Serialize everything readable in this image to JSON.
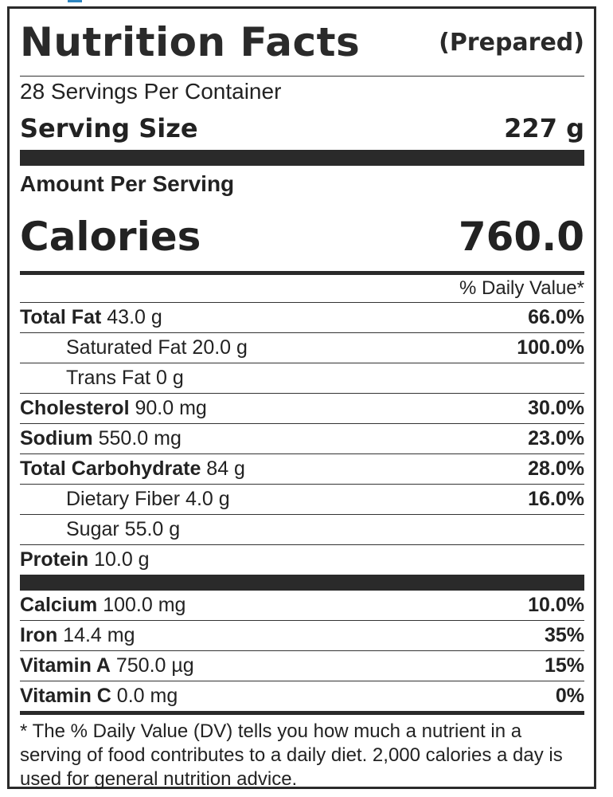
{
  "label": {
    "title": "Nutrition Facts",
    "prepared": "(Prepared)",
    "servings_per_container": "28 Servings Per Container",
    "serving_size_label": "Serving Size",
    "serving_size_value": "227 g",
    "amount_per_serving": "Amount Per Serving",
    "calories_label": "Calories",
    "calories_value": "760.0",
    "daily_value_header": "% Daily Value*"
  },
  "nutrients": [
    {
      "name": "Total Fat",
      "amount": " 43.0 g",
      "dv": "66.0%"
    },
    {
      "name": "Saturated Fat",
      "amount": " 20.0 g",
      "dv": "100.0%"
    },
    {
      "name": "Trans Fat",
      "amount": " 0 g",
      "dv": ""
    },
    {
      "name": "Cholesterol",
      "amount": " 90.0 mg",
      "dv": "30.0%"
    },
    {
      "name": "Sodium",
      "amount": " 550.0 mg",
      "dv": "23.0%"
    },
    {
      "name": "Total Carbohydrate",
      "amount": " 84 g",
      "dv": "28.0%"
    },
    {
      "name": "Dietary Fiber",
      "amount": " 4.0 g",
      "dv": "16.0%"
    },
    {
      "name": "Sugar",
      "amount": " 55.0 g",
      "dv": ""
    },
    {
      "name": "Protein",
      "amount": " 10.0 g",
      "dv": ""
    }
  ],
  "minerals": [
    {
      "name": "Calcium",
      "amount": " 100.0 mg",
      "dv": "10.0%"
    },
    {
      "name": "Iron",
      "amount": " 14.4 mg",
      "dv": "35%"
    },
    {
      "name": "Vitamin A",
      "amount": " 750.0 µg",
      "dv": "15%"
    },
    {
      "name": "Vitamin C",
      "amount": " 0.0 mg",
      "dv": "0%"
    }
  ],
  "footnote": "* The % Daily Value (DV) tells you how much a nutrient in a serving of food contributes to a daily diet. 2,000 calories a day is used for general nutrition advice."
}
